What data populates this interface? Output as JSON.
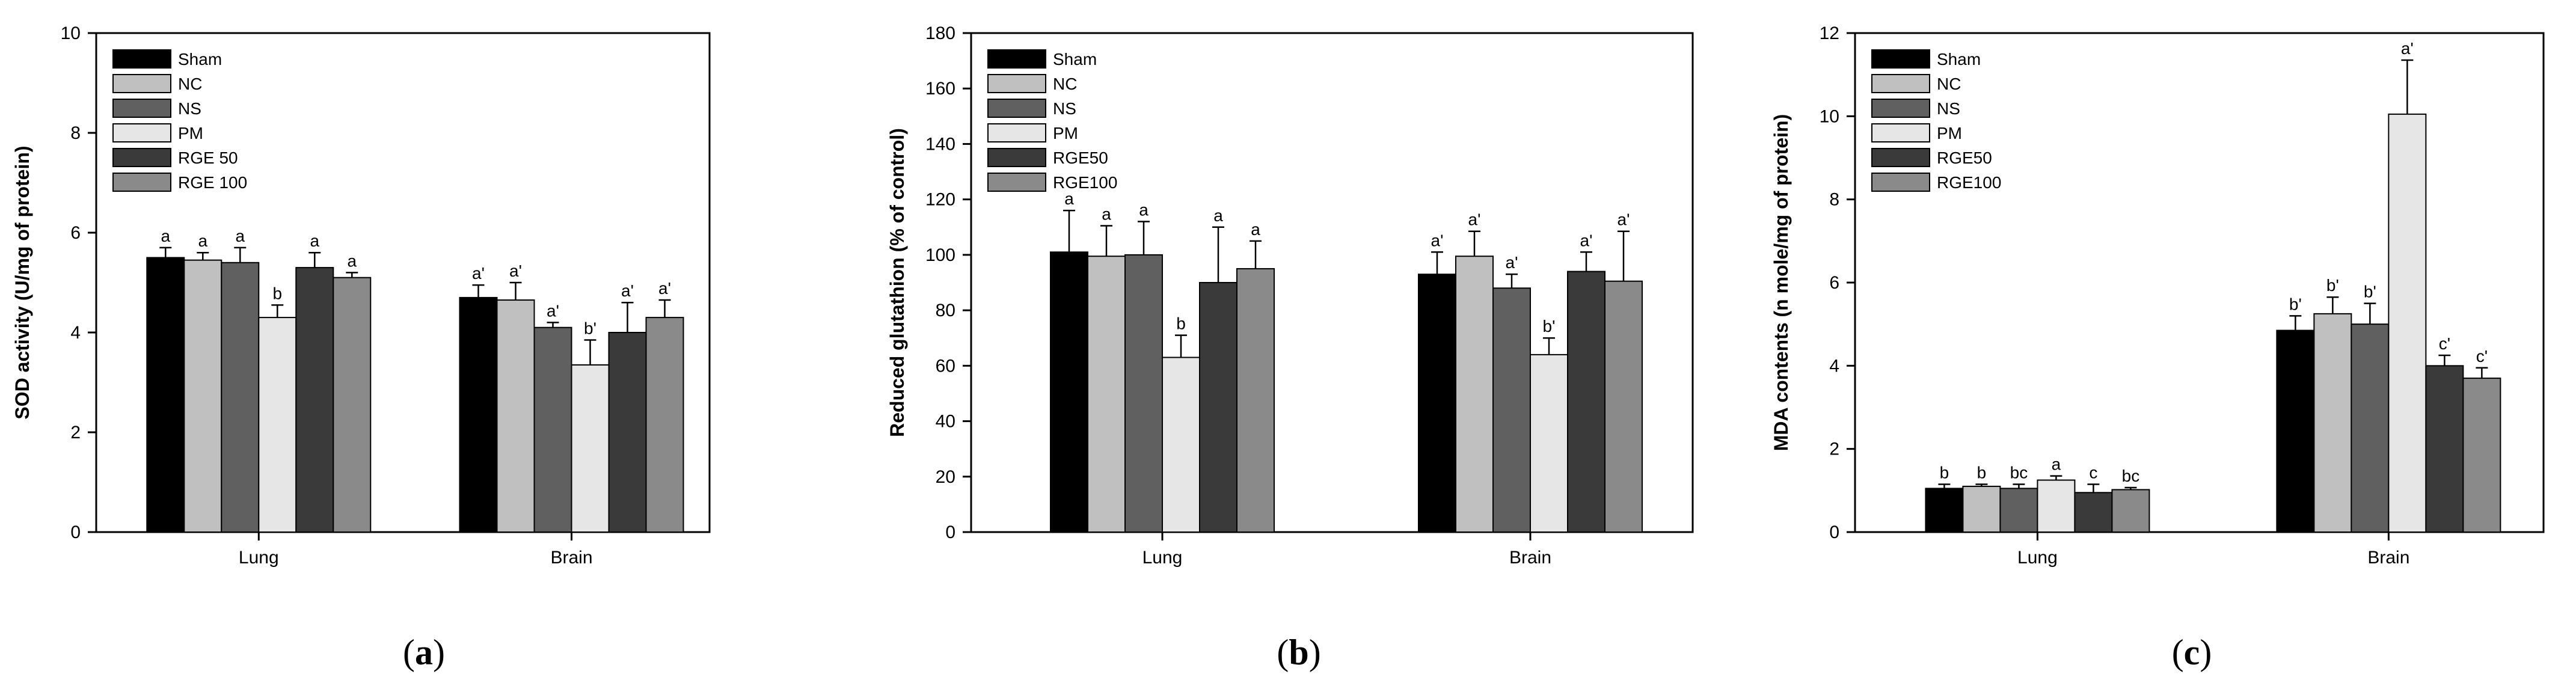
{
  "groups": [
    "Sham",
    "NC",
    "NS",
    "PM",
    "RGE50",
    "RGE100"
  ],
  "colors": [
    "#000000",
    "#c0c0c0",
    "#606060",
    "#e6e6e6",
    "#3a3a3a",
    "#8a8a8a"
  ],
  "chart_data": [
    {
      "type": "bar",
      "panel_label": "a",
      "ylabel": "SOD activity (U/mg of protein)",
      "xlabel": "",
      "categories": [
        "Lung",
        "Brain"
      ],
      "ylim": [
        0,
        10
      ],
      "yticks": [
        "0",
        "2",
        "4",
        "6",
        "8",
        "10"
      ],
      "ytick_values": [
        0,
        2,
        4,
        6,
        8,
        10
      ],
      "legend_labels": [
        "Sham",
        "NC",
        "NS",
        "PM",
        "RGE 50",
        "RGE 100"
      ],
      "legend_position": "top-left",
      "series": [
        {
          "name": "Sham",
          "values": [
            5.5,
            4.7
          ],
          "errors": [
            0.2,
            0.25
          ],
          "labels": [
            "a",
            "a'"
          ]
        },
        {
          "name": "NC",
          "values": [
            5.45,
            4.65
          ],
          "errors": [
            0.15,
            0.35
          ],
          "labels": [
            "a",
            "a'"
          ]
        },
        {
          "name": "NS",
          "values": [
            5.4,
            4.1
          ],
          "errors": [
            0.3,
            0.1
          ],
          "labels": [
            "a",
            "a'"
          ]
        },
        {
          "name": "PM",
          "values": [
            4.3,
            3.35
          ],
          "errors": [
            0.25,
            0.5
          ],
          "labels": [
            "b",
            "b'"
          ]
        },
        {
          "name": "RGE50",
          "values": [
            5.3,
            4.0
          ],
          "errors": [
            0.3,
            0.6
          ],
          "labels": [
            "a",
            "a'"
          ]
        },
        {
          "name": "RGE100",
          "values": [
            5.1,
            4.3
          ],
          "errors": [
            0.1,
            0.35
          ],
          "labels": [
            "a",
            "a'"
          ]
        }
      ]
    },
    {
      "type": "bar",
      "panel_label": "b",
      "ylabel": "Reduced glutathion (% of control)",
      "xlabel": "",
      "categories": [
        "Lung",
        "Brain"
      ],
      "ylim": [
        0,
        180
      ],
      "yticks": [
        "0",
        "20",
        "40",
        "60",
        "80",
        "100",
        "120",
        "140",
        "160",
        "180"
      ],
      "ytick_values": [
        0,
        20,
        40,
        60,
        80,
        100,
        120,
        140,
        160,
        180
      ],
      "legend_labels": [
        "Sham",
        "NC",
        "NS",
        "PM",
        "RGE50",
        "RGE100"
      ],
      "legend_position": "top-left",
      "series": [
        {
          "name": "Sham",
          "values": [
            101,
            93
          ],
          "errors": [
            15,
            8
          ],
          "labels": [
            "a",
            "a'"
          ]
        },
        {
          "name": "NC",
          "values": [
            99.5,
            99.5
          ],
          "errors": [
            11,
            9
          ],
          "labels": [
            "a",
            "a'"
          ]
        },
        {
          "name": "NS",
          "values": [
            100,
            88
          ],
          "errors": [
            12,
            5
          ],
          "labels": [
            "a",
            "a'"
          ]
        },
        {
          "name": "PM",
          "values": [
            63,
            64
          ],
          "errors": [
            8,
            6
          ],
          "labels": [
            "b",
            "b'"
          ]
        },
        {
          "name": "RGE50",
          "values": [
            90,
            94
          ],
          "errors": [
            20,
            7
          ],
          "labels": [
            "a",
            "a'"
          ]
        },
        {
          "name": "RGE100",
          "values": [
            95,
            90.5
          ],
          "errors": [
            10,
            18
          ],
          "labels": [
            "a",
            "a'"
          ]
        }
      ]
    },
    {
      "type": "bar",
      "panel_label": "c",
      "ylabel": "MDA contents (n mole/mg of protein)",
      "xlabel": "",
      "categories": [
        "Lung",
        "Brain"
      ],
      "ylim": [
        0,
        12
      ],
      "yticks": [
        "0",
        "2",
        "4",
        "6",
        "8",
        "10",
        "12"
      ],
      "ytick_values": [
        0,
        2,
        4,
        6,
        8,
        10,
        12
      ],
      "legend_labels": [
        "Sham",
        "NC",
        "NS",
        "PM",
        "RGE50",
        "RGE100"
      ],
      "legend_position": "top-left",
      "series": [
        {
          "name": "Sham",
          "values": [
            1.05,
            4.85
          ],
          "errors": [
            0.1,
            0.35
          ],
          "labels": [
            "b",
            "b'"
          ]
        },
        {
          "name": "NC",
          "values": [
            1.1,
            5.25
          ],
          "errors": [
            0.05,
            0.4
          ],
          "labels": [
            "b",
            "b'"
          ]
        },
        {
          "name": "NS",
          "values": [
            1.05,
            5.0
          ],
          "errors": [
            0.1,
            0.5
          ],
          "labels": [
            "bc",
            "b'"
          ]
        },
        {
          "name": "PM",
          "values": [
            1.25,
            10.05
          ],
          "errors": [
            0.1,
            1.3
          ],
          "labels": [
            "a",
            "a'"
          ]
        },
        {
          "name": "RGE50",
          "values": [
            0.95,
            4.0
          ],
          "errors": [
            0.2,
            0.25
          ],
          "labels": [
            "c",
            "c'"
          ]
        },
        {
          "name": "RGE100",
          "values": [
            1.02,
            3.7
          ],
          "errors": [
            0.05,
            0.25
          ],
          "labels": [
            "bc",
            "c'"
          ]
        }
      ]
    }
  ]
}
